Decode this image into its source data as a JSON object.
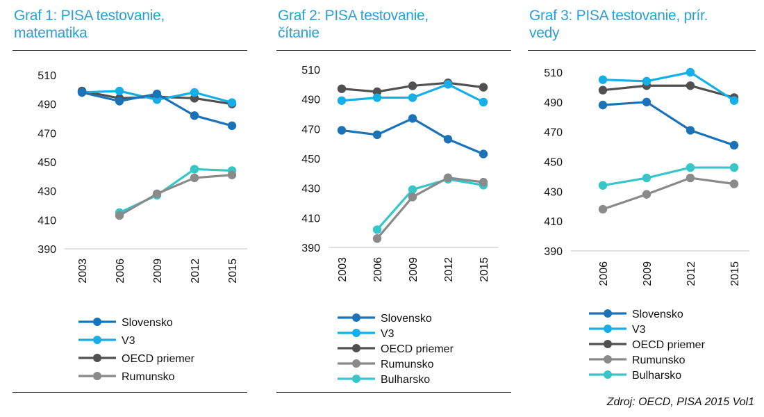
{
  "source": "Zdroj: OECD, PISA 2015 Vol1",
  "chart_data": [
    {
      "type": "line",
      "title_lines": [
        "Graf 1: PISA testovanie,",
        "matematika"
      ],
      "categories": [
        "2003",
        "2006",
        "2009",
        "2012",
        "2015"
      ],
      "ylim": [
        390,
        510
      ],
      "yticks": [
        390,
        410,
        430,
        450,
        470,
        490,
        510
      ],
      "grid": false,
      "legend_position": "bottom",
      "series": [
        {
          "name": "Slovensko",
          "color": "#1a73b8",
          "values": [
            498,
            492,
            497,
            482,
            475
          ]
        },
        {
          "name": "V3",
          "color": "#16aee8",
          "values": [
            498,
            499,
            493,
            498,
            491
          ]
        },
        {
          "name": "OECD priemer",
          "color": "#505050",
          "values": [
            499,
            494,
            495,
            494,
            490
          ]
        },
        {
          "name": "Rumunsko",
          "color": "#8a8a8a",
          "values": [
            null,
            413,
            428,
            439,
            441
          ]
        },
        {
          "name": "",
          "color": "#36c6c8",
          "values": [
            null,
            415,
            427,
            445,
            444
          ]
        }
      ]
    },
    {
      "type": "line",
      "title_lines": [
        "Graf 2: PISA testovanie,",
        "čítanie"
      ],
      "categories": [
        "2003",
        "2006",
        "2009",
        "2012",
        "2015"
      ],
      "ylim": [
        390,
        510
      ],
      "yticks": [
        390,
        410,
        430,
        450,
        470,
        490,
        510
      ],
      "grid": false,
      "legend_position": "bottom",
      "series": [
        {
          "name": "Slovensko",
          "color": "#1a73b8",
          "values": [
            469,
            466,
            477,
            463,
            453
          ]
        },
        {
          "name": "V3",
          "color": "#16aee8",
          "values": [
            489,
            491,
            491,
            500,
            488
          ]
        },
        {
          "name": "OECD priemer",
          "color": "#505050",
          "values": [
            497,
            495,
            499,
            501,
            498
          ]
        },
        {
          "name": "Rumunsko",
          "color": "#8a8a8a",
          "values": [
            null,
            396,
            424,
            437,
            434
          ]
        },
        {
          "name": "Bulharsko",
          "color": "#36c6c8",
          "values": [
            null,
            402,
            429,
            436,
            432
          ]
        }
      ]
    },
    {
      "type": "line",
      "title_lines": [
        "Graf 3: PISA testovanie, prír.",
        "vedy"
      ],
      "categories": [
        "2006",
        "2009",
        "2012",
        "2015"
      ],
      "ylim": [
        390,
        510
      ],
      "yticks": [
        390,
        410,
        430,
        450,
        470,
        490,
        510
      ],
      "grid": false,
      "legend_position": "bottom",
      "series": [
        {
          "name": "Slovensko",
          "color": "#1a73b8",
          "values": [
            488,
            490,
            471,
            461
          ]
        },
        {
          "name": "V3",
          "color": "#16aee8",
          "values": [
            505,
            504,
            510,
            491
          ]
        },
        {
          "name": "OECD priemer",
          "color": "#505050",
          "values": [
            498,
            501,
            501,
            493
          ]
        },
        {
          "name": "Rumunsko",
          "color": "#8a8a8a",
          "values": [
            418,
            428,
            439,
            435
          ]
        },
        {
          "name": "Bulharsko",
          "color": "#36c6c8",
          "values": [
            434,
            439,
            446,
            446
          ]
        }
      ]
    }
  ]
}
